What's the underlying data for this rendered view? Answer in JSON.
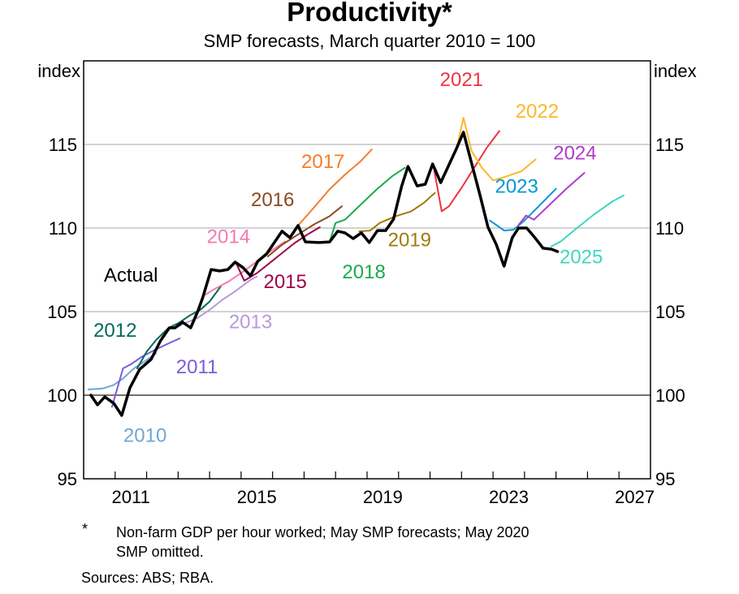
{
  "chart_data": {
    "type": "line",
    "title": "Productivity*",
    "subtitle": "SMP forecasts, March quarter 2010 = 100",
    "ylabel_left": "index",
    "ylabel_right": "index",
    "xlabel": "",
    "xlim": [
      2010.0,
      2028.0
    ],
    "ylim": [
      95,
      120
    ],
    "yticks": [
      95,
      100,
      105,
      110,
      115
    ],
    "ytick_labels": [
      "95",
      "100",
      "105",
      "110",
      "115"
    ],
    "xtick_labels": [
      {
        "label": "2011",
        "x": 2011.5
      },
      {
        "label": "2015",
        "x": 2015.5
      },
      {
        "label": "2019",
        "x": 2019.5
      },
      {
        "label": "2023",
        "x": 2023.5
      },
      {
        "label": "2027",
        "x": 2027.5
      }
    ],
    "grid": true,
    "series": [
      {
        "name": "Actual",
        "color": "#000000",
        "width": 3.5,
        "label": {
          "text": "Actual",
          "x": 2011.5,
          "y": 106.8
        },
        "points": [
          [
            2010.23,
            100.0
          ],
          [
            2010.44,
            99.42
          ],
          [
            2010.67,
            99.9
          ],
          [
            2010.96,
            99.51
          ],
          [
            2011.21,
            98.79
          ],
          [
            2011.47,
            100.44
          ],
          [
            2011.78,
            101.55
          ],
          [
            2012.14,
            102.14
          ],
          [
            2012.44,
            103.25
          ],
          [
            2012.72,
            104.03
          ],
          [
            2012.9,
            104.03
          ],
          [
            2013.14,
            104.37
          ],
          [
            2013.4,
            104.03
          ],
          [
            2013.63,
            105.05
          ],
          [
            2013.78,
            105.83
          ],
          [
            2014.05,
            107.52
          ],
          [
            2014.32,
            107.43
          ],
          [
            2014.58,
            107.52
          ],
          [
            2014.81,
            107.96
          ],
          [
            2015.07,
            107.62
          ],
          [
            2015.3,
            107.14
          ],
          [
            2015.53,
            108.01
          ],
          [
            2015.81,
            108.45
          ],
          [
            2016.3,
            109.81
          ],
          [
            2016.55,
            109.42
          ],
          [
            2016.81,
            110.15
          ],
          [
            2017.04,
            109.17
          ],
          [
            2017.48,
            109.13
          ],
          [
            2017.81,
            109.17
          ],
          [
            2018.07,
            109.81
          ],
          [
            2018.3,
            109.71
          ],
          [
            2018.56,
            109.37
          ],
          [
            2018.82,
            109.71
          ],
          [
            2019.07,
            109.13
          ],
          [
            2019.33,
            109.85
          ],
          [
            2019.59,
            109.85
          ],
          [
            2019.84,
            110.53
          ],
          [
            2020.1,
            112.52
          ],
          [
            2020.3,
            113.69
          ],
          [
            2020.59,
            112.52
          ],
          [
            2020.85,
            112.62
          ],
          [
            2021.08,
            113.83
          ],
          [
            2021.34,
            112.72
          ],
          [
            2021.83,
            114.71
          ],
          [
            2022.06,
            115.73
          ],
          [
            2022.32,
            113.88
          ],
          [
            2022.59,
            111.94
          ],
          [
            2022.84,
            110.05
          ],
          [
            2023.1,
            109.03
          ],
          [
            2023.35,
            107.72
          ],
          [
            2023.61,
            109.42
          ],
          [
            2023.81,
            110.0
          ],
          [
            2024.07,
            110.0
          ],
          [
            2024.33,
            109.42
          ],
          [
            2024.59,
            108.79
          ],
          [
            2024.85,
            108.74
          ],
          [
            2025.05,
            108.59
          ]
        ]
      },
      {
        "name": "2010",
        "color": "#6ea7d6",
        "width": 2,
        "label": {
          "text": "2010",
          "x": 2011.95,
          "y": 97.2
        },
        "points": [
          [
            2010.15,
            100.34
          ],
          [
            2010.6,
            100.4
          ],
          [
            2010.95,
            100.6
          ],
          [
            2011.25,
            101.0
          ],
          [
            2011.6,
            101.6
          ],
          [
            2012.0,
            102.1
          ],
          [
            2012.3,
            102.5
          ]
        ]
      },
      {
        "name": "2011",
        "color": "#7b5cd6",
        "width": 2,
        "label": {
          "text": "2011",
          "x": 2013.6,
          "y": 101.3
        },
        "points": [
          [
            2010.9,
            99.3
          ],
          [
            2011.25,
            101.6
          ],
          [
            2011.5,
            101.85
          ],
          [
            2011.85,
            102.3
          ],
          [
            2012.25,
            102.7
          ],
          [
            2012.7,
            103.1
          ],
          [
            2013.05,
            103.4
          ]
        ]
      },
      {
        "name": "2012",
        "color": "#00695c",
        "width": 2,
        "label": {
          "text": "2012",
          "x": 2011.0,
          "y": 103.5
        },
        "points": [
          [
            2011.7,
            101.6
          ],
          [
            2012.0,
            102.6
          ],
          [
            2012.3,
            103.3
          ],
          [
            2012.7,
            104.03
          ],
          [
            2013.0,
            104.3
          ],
          [
            2013.4,
            104.8
          ],
          [
            2013.7,
            105.1
          ],
          [
            2014.0,
            105.6
          ],
          [
            2014.35,
            106.5
          ]
        ]
      },
      {
        "name": "2013",
        "color": "#b79ad6",
        "width": 2,
        "label": {
          "text": "2013",
          "x": 2015.3,
          "y": 104.0
        },
        "points": [
          [
            2012.9,
            104.0
          ],
          [
            2013.2,
            104.3
          ],
          [
            2013.6,
            104.6
          ],
          [
            2014.0,
            105.1
          ],
          [
            2014.4,
            105.7
          ],
          [
            2014.8,
            106.2
          ],
          [
            2015.3,
            106.9
          ],
          [
            2015.5,
            107.1
          ]
        ]
      },
      {
        "name": "2014",
        "color": "#f47ab0",
        "width": 2,
        "label": {
          "text": "2014",
          "x": 2014.6,
          "y": 109.1
        },
        "points": [
          [
            2013.85,
            106.0
          ],
          [
            2014.2,
            106.4
          ],
          [
            2014.6,
            106.8
          ],
          [
            2015.0,
            107.3
          ],
          [
            2015.5,
            108.0
          ],
          [
            2016.0,
            108.7
          ],
          [
            2016.4,
            109.2
          ]
        ]
      },
      {
        "name": "2015",
        "color": "#a0004a",
        "width": 2,
        "label": {
          "text": "2015",
          "x": 2016.4,
          "y": 106.4
        },
        "points": [
          [
            2014.83,
            107.95
          ],
          [
            2015.1,
            106.85
          ],
          [
            2015.5,
            107.3
          ],
          [
            2015.9,
            107.9
          ],
          [
            2016.3,
            108.5
          ],
          [
            2016.7,
            109.1
          ],
          [
            2017.1,
            109.6
          ],
          [
            2017.5,
            110.05
          ]
        ]
      },
      {
        "name": "2016",
        "color": "#8b4a1f",
        "width": 2,
        "label": {
          "text": "2016",
          "x": 2016.0,
          "y": 111.3
        },
        "points": [
          [
            2015.85,
            108.3
          ],
          [
            2016.3,
            109.0
          ],
          [
            2016.8,
            109.6
          ],
          [
            2017.3,
            110.2
          ],
          [
            2017.8,
            110.7
          ],
          [
            2018.2,
            111.3
          ]
        ]
      },
      {
        "name": "2017",
        "color": "#f57d2a",
        "width": 2,
        "label": {
          "text": "2017",
          "x": 2017.6,
          "y": 113.6
        },
        "points": [
          [
            2016.81,
            110.15
          ],
          [
            2017.3,
            111.2
          ],
          [
            2017.8,
            112.3
          ],
          [
            2018.3,
            113.2
          ],
          [
            2018.8,
            114.0
          ],
          [
            2019.15,
            114.7
          ]
        ]
      },
      {
        "name": "2018",
        "color": "#1aaa4c",
        "width": 2,
        "label": {
          "text": "2018",
          "x": 2018.9,
          "y": 107.0
        },
        "points": [
          [
            2017.81,
            109.17
          ],
          [
            2018.0,
            110.3
          ],
          [
            2018.3,
            110.5
          ],
          [
            2018.8,
            111.4
          ],
          [
            2019.3,
            112.3
          ],
          [
            2019.8,
            113.1
          ],
          [
            2020.2,
            113.6
          ]
        ]
      },
      {
        "name": "2019",
        "color": "#a07a10",
        "width": 2,
        "label": {
          "text": "2019",
          "x": 2020.35,
          "y": 108.9
        },
        "points": [
          [
            2018.75,
            109.8
          ],
          [
            2019.1,
            109.85
          ],
          [
            2019.4,
            110.3
          ],
          [
            2019.9,
            110.7
          ],
          [
            2020.4,
            111.0
          ],
          [
            2020.8,
            111.5
          ],
          [
            2021.15,
            112.1
          ]
        ]
      },
      {
        "name": "2021",
        "color": "#ef3340",
        "width": 2,
        "label": {
          "text": "2021",
          "x": 2022.0,
          "y": 118.5
        },
        "points": [
          [
            2020.85,
            112.62
          ],
          [
            2021.1,
            113.8
          ],
          [
            2021.37,
            111.0
          ],
          [
            2021.6,
            111.3
          ],
          [
            2022.0,
            112.4
          ],
          [
            2022.4,
            113.6
          ],
          [
            2022.8,
            114.8
          ],
          [
            2023.2,
            115.8
          ]
        ]
      },
      {
        "name": "2022",
        "color": "#fdb72a",
        "width": 2,
        "label": {
          "text": "2022",
          "x": 2024.4,
          "y": 116.6
        },
        "points": [
          [
            2021.85,
            114.8
          ],
          [
            2022.06,
            116.6
          ],
          [
            2022.32,
            114.6
          ],
          [
            2022.65,
            113.6
          ],
          [
            2023.0,
            112.85
          ],
          [
            2023.45,
            113.1
          ],
          [
            2023.9,
            113.4
          ],
          [
            2024.35,
            114.1
          ]
        ]
      },
      {
        "name": "2023",
        "color": "#0096d6",
        "width": 2,
        "label": {
          "text": "2023",
          "x": 2023.75,
          "y": 112.1
        },
        "points": [
          [
            2022.9,
            110.45
          ],
          [
            2023.35,
            109.85
          ],
          [
            2023.65,
            109.9
          ],
          [
            2024.0,
            110.45
          ],
          [
            2024.5,
            111.4
          ],
          [
            2025.0,
            112.35
          ]
        ]
      },
      {
        "name": "2024",
        "color": "#b03cc8",
        "width": 2,
        "label": {
          "text": "2024",
          "x": 2025.6,
          "y": 114.1
        },
        "points": [
          [
            2023.8,
            110.15
          ],
          [
            2024.05,
            110.75
          ],
          [
            2024.3,
            110.5
          ],
          [
            2024.8,
            111.4
          ],
          [
            2025.3,
            112.3
          ],
          [
            2025.9,
            113.3
          ]
        ]
      },
      {
        "name": "2025",
        "color": "#3fd6c0",
        "width": 2,
        "label": {
          "text": "2025",
          "x": 2025.8,
          "y": 107.9
        },
        "points": [
          [
            2024.85,
            108.9
          ],
          [
            2025.15,
            109.2
          ],
          [
            2025.6,
            109.9
          ],
          [
            2026.2,
            110.8
          ],
          [
            2026.8,
            111.6
          ],
          [
            2027.15,
            111.95
          ]
        ]
      }
    ]
  },
  "footnotes": {
    "asterisk": "*",
    "note_line1": "Non-farm GDP per hour worked; May SMP forecasts; May 2020",
    "note_line2": "SMP omitted.",
    "sources": "Sources: ABS; RBA."
  }
}
